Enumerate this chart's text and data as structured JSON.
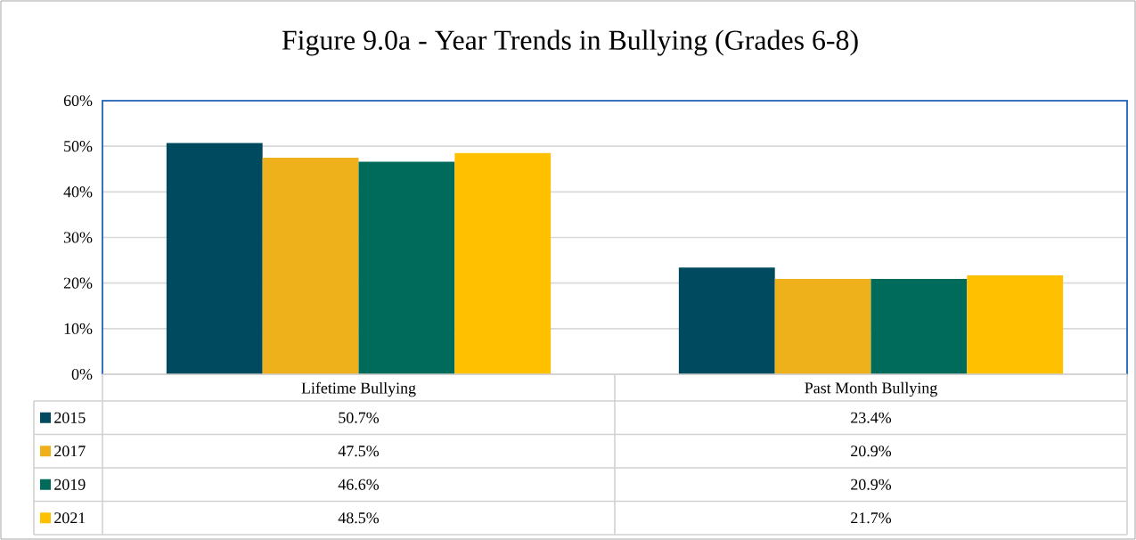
{
  "chart_data": {
    "type": "bar",
    "title": "Figure 9.0a - Year Trends in Bullying (Grades 6-8)",
    "categories": [
      "Lifetime Bullying",
      "Past Month Bullying"
    ],
    "series": [
      {
        "name": "2015",
        "color": "#004a5f",
        "values": [
          50.7,
          23.4
        ],
        "value_labels": [
          "50.7%",
          "23.4%"
        ]
      },
      {
        "name": "2017",
        "color": "#eeb11b",
        "values": [
          47.5,
          20.9
        ],
        "value_labels": [
          "47.5%",
          "20.9%"
        ]
      },
      {
        "name": "2019",
        "color": "#006b5a",
        "values": [
          46.6,
          20.9
        ],
        "value_labels": [
          "46.6%",
          "20.9%"
        ]
      },
      {
        "name": "2021",
        "color": "#ffc000",
        "values": [
          48.5,
          21.7
        ],
        "value_labels": [
          "48.5%",
          "21.7%"
        ]
      }
    ],
    "ylim": [
      0,
      60
    ],
    "yticks": [
      {
        "value": 0,
        "label": "0%"
      },
      {
        "value": 10,
        "label": "10%"
      },
      {
        "value": 20,
        "label": "20%"
      },
      {
        "value": 30,
        "label": "30%"
      },
      {
        "value": 40,
        "label": "40%"
      },
      {
        "value": 50,
        "label": "50%"
      },
      {
        "value": 60,
        "label": "60%"
      }
    ],
    "grid": "y",
    "legend": "bottom"
  }
}
